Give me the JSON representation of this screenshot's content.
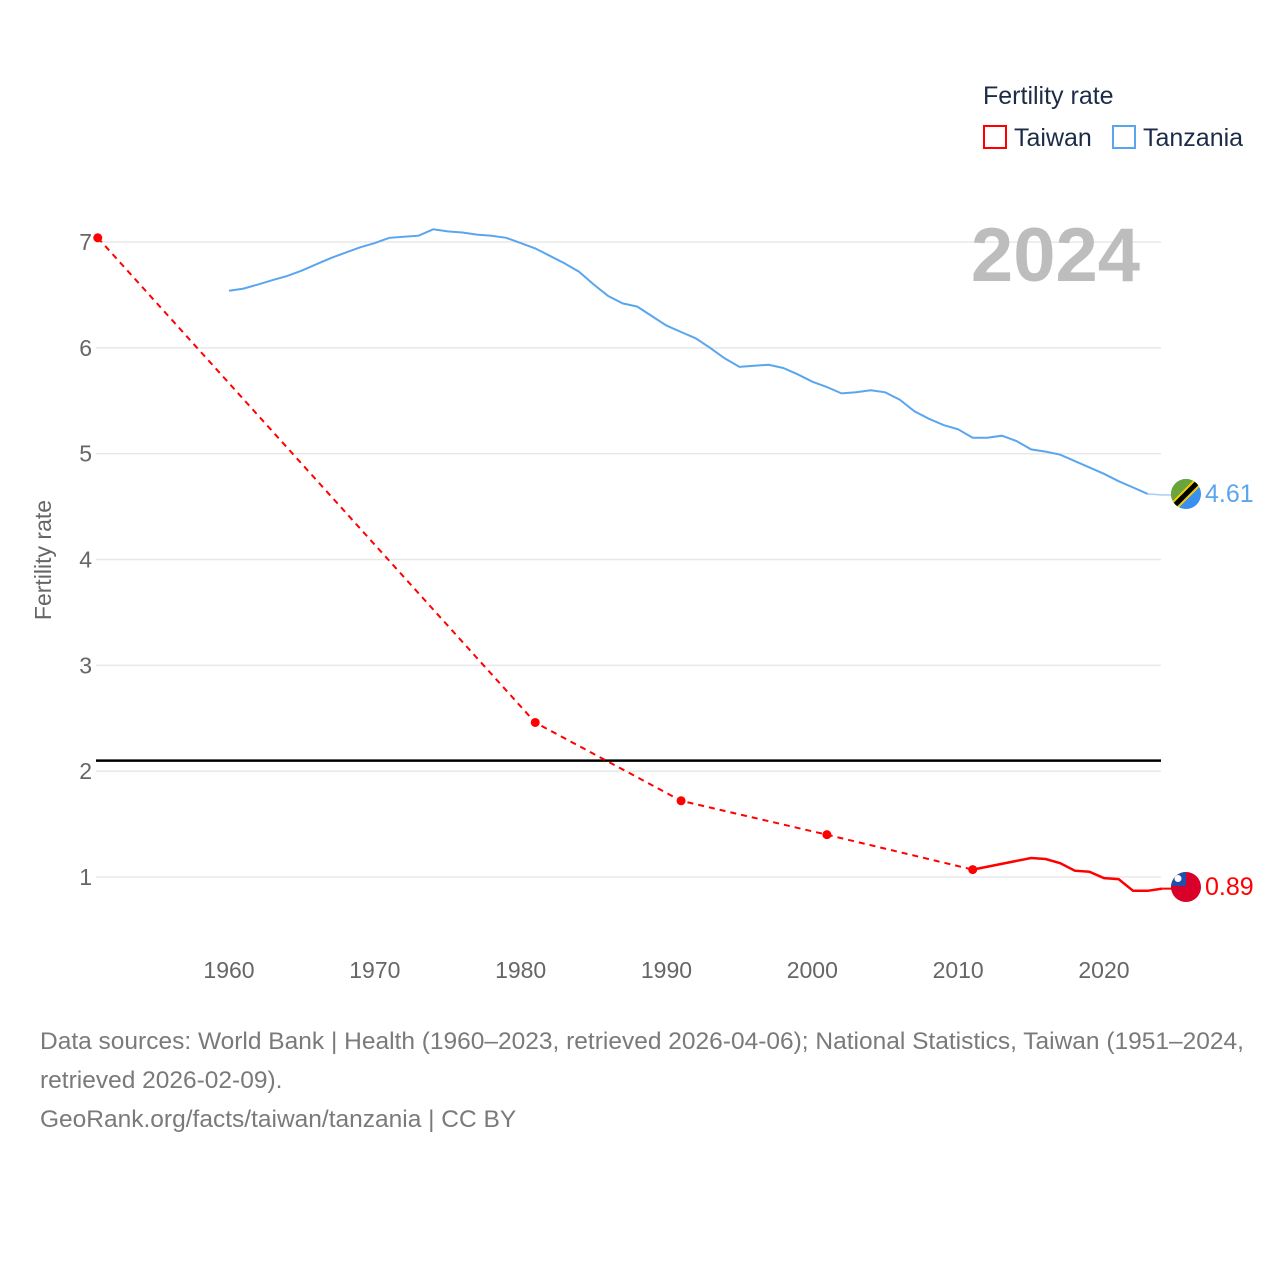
{
  "chart_data": {
    "type": "line",
    "year_label": "2024",
    "ylabel": "Fertility rate",
    "xlabel": "",
    "xlim": [
      1951,
      2024
    ],
    "ylim": [
      0.4,
      7.2
    ],
    "x_ticks": [
      1960,
      1970,
      1980,
      1990,
      2000,
      2010,
      2020
    ],
    "y_ticks": [
      1,
      2,
      3,
      4,
      5,
      6,
      7
    ],
    "grid": true,
    "legend": {
      "title": "Fertility rate",
      "placement": "top-right",
      "entries": [
        "Taiwan",
        "Tanzania"
      ]
    },
    "reference_line": {
      "value": 2.1,
      "color": "#000000"
    },
    "series": [
      {
        "name": "Taiwan",
        "color": "#ff0000",
        "end_label": "0.89",
        "flag": "taiwan-flag",
        "dashed_points": [
          [
            1951,
            7.04
          ],
          [
            1981,
            2.46
          ],
          [
            1991,
            1.72
          ],
          [
            2001,
            1.4
          ],
          [
            2011,
            1.07
          ]
        ],
        "solid_points": [
          [
            2011,
            1.07
          ],
          [
            2015,
            1.18
          ],
          [
            2016,
            1.17
          ],
          [
            2017,
            1.13
          ],
          [
            2018,
            1.06
          ],
          [
            2019,
            1.05
          ],
          [
            2020,
            0.99
          ],
          [
            2021,
            0.98
          ],
          [
            2022,
            0.87
          ],
          [
            2023,
            0.87
          ],
          [
            2024,
            0.89
          ]
        ],
        "markers": [
          [
            1951,
            7.04
          ],
          [
            1981,
            2.46
          ],
          [
            1991,
            1.72
          ],
          [
            2001,
            1.4
          ],
          [
            2011,
            1.07
          ]
        ]
      },
      {
        "name": "Tanzania",
        "color": "#5aa6ee",
        "end_label": "4.61",
        "flag": "tanzania-flag",
        "x": [
          1960,
          1961,
          1962,
          1963,
          1964,
          1965,
          1966,
          1967,
          1968,
          1969,
          1970,
          1971,
          1972,
          1973,
          1974,
          1975,
          1976,
          1977,
          1978,
          1979,
          1980,
          1981,
          1982,
          1983,
          1984,
          1985,
          1986,
          1987,
          1988,
          1989,
          1990,
          1991,
          1992,
          1993,
          1994,
          1995,
          1996,
          1997,
          1998,
          1999,
          2000,
          2001,
          2002,
          2003,
          2004,
          2005,
          2006,
          2007,
          2008,
          2009,
          2010,
          2011,
          2012,
          2013,
          2014,
          2015,
          2016,
          2017,
          2018,
          2019,
          2020,
          2021,
          2022,
          2023
        ],
        "values": [
          6.54,
          6.56,
          6.6,
          6.64,
          6.68,
          6.73,
          6.79,
          6.85,
          6.9,
          6.95,
          6.99,
          7.04,
          7.05,
          7.06,
          7.12,
          7.1,
          7.09,
          7.07,
          7.06,
          7.04,
          6.99,
          6.94,
          6.87,
          6.8,
          6.72,
          6.6,
          6.49,
          6.42,
          6.39,
          6.3,
          6.21,
          6.15,
          6.09,
          6.0,
          5.9,
          5.82,
          5.83,
          5.84,
          5.81,
          5.75,
          5.68,
          5.63,
          5.57,
          5.58,
          5.6,
          5.58,
          5.51,
          5.4,
          5.33,
          5.27,
          5.23,
          5.15,
          5.15,
          5.17,
          5.12,
          5.04,
          5.02,
          4.99,
          4.93,
          4.87,
          4.81,
          4.74,
          4.68,
          4.62
        ],
        "extension": [
          [
            2023,
            4.62
          ],
          [
            2024,
            4.61
          ]
        ]
      }
    ]
  },
  "footer": {
    "sources": "Data sources: World Bank | Health (1960–2023, retrieved 2026-04-06); National Statistics, Taiwan (1951–2024, retrieved 2026-02-09).",
    "attribution": "GeoRank.org/facts/taiwan/tanzania | CC BY"
  }
}
